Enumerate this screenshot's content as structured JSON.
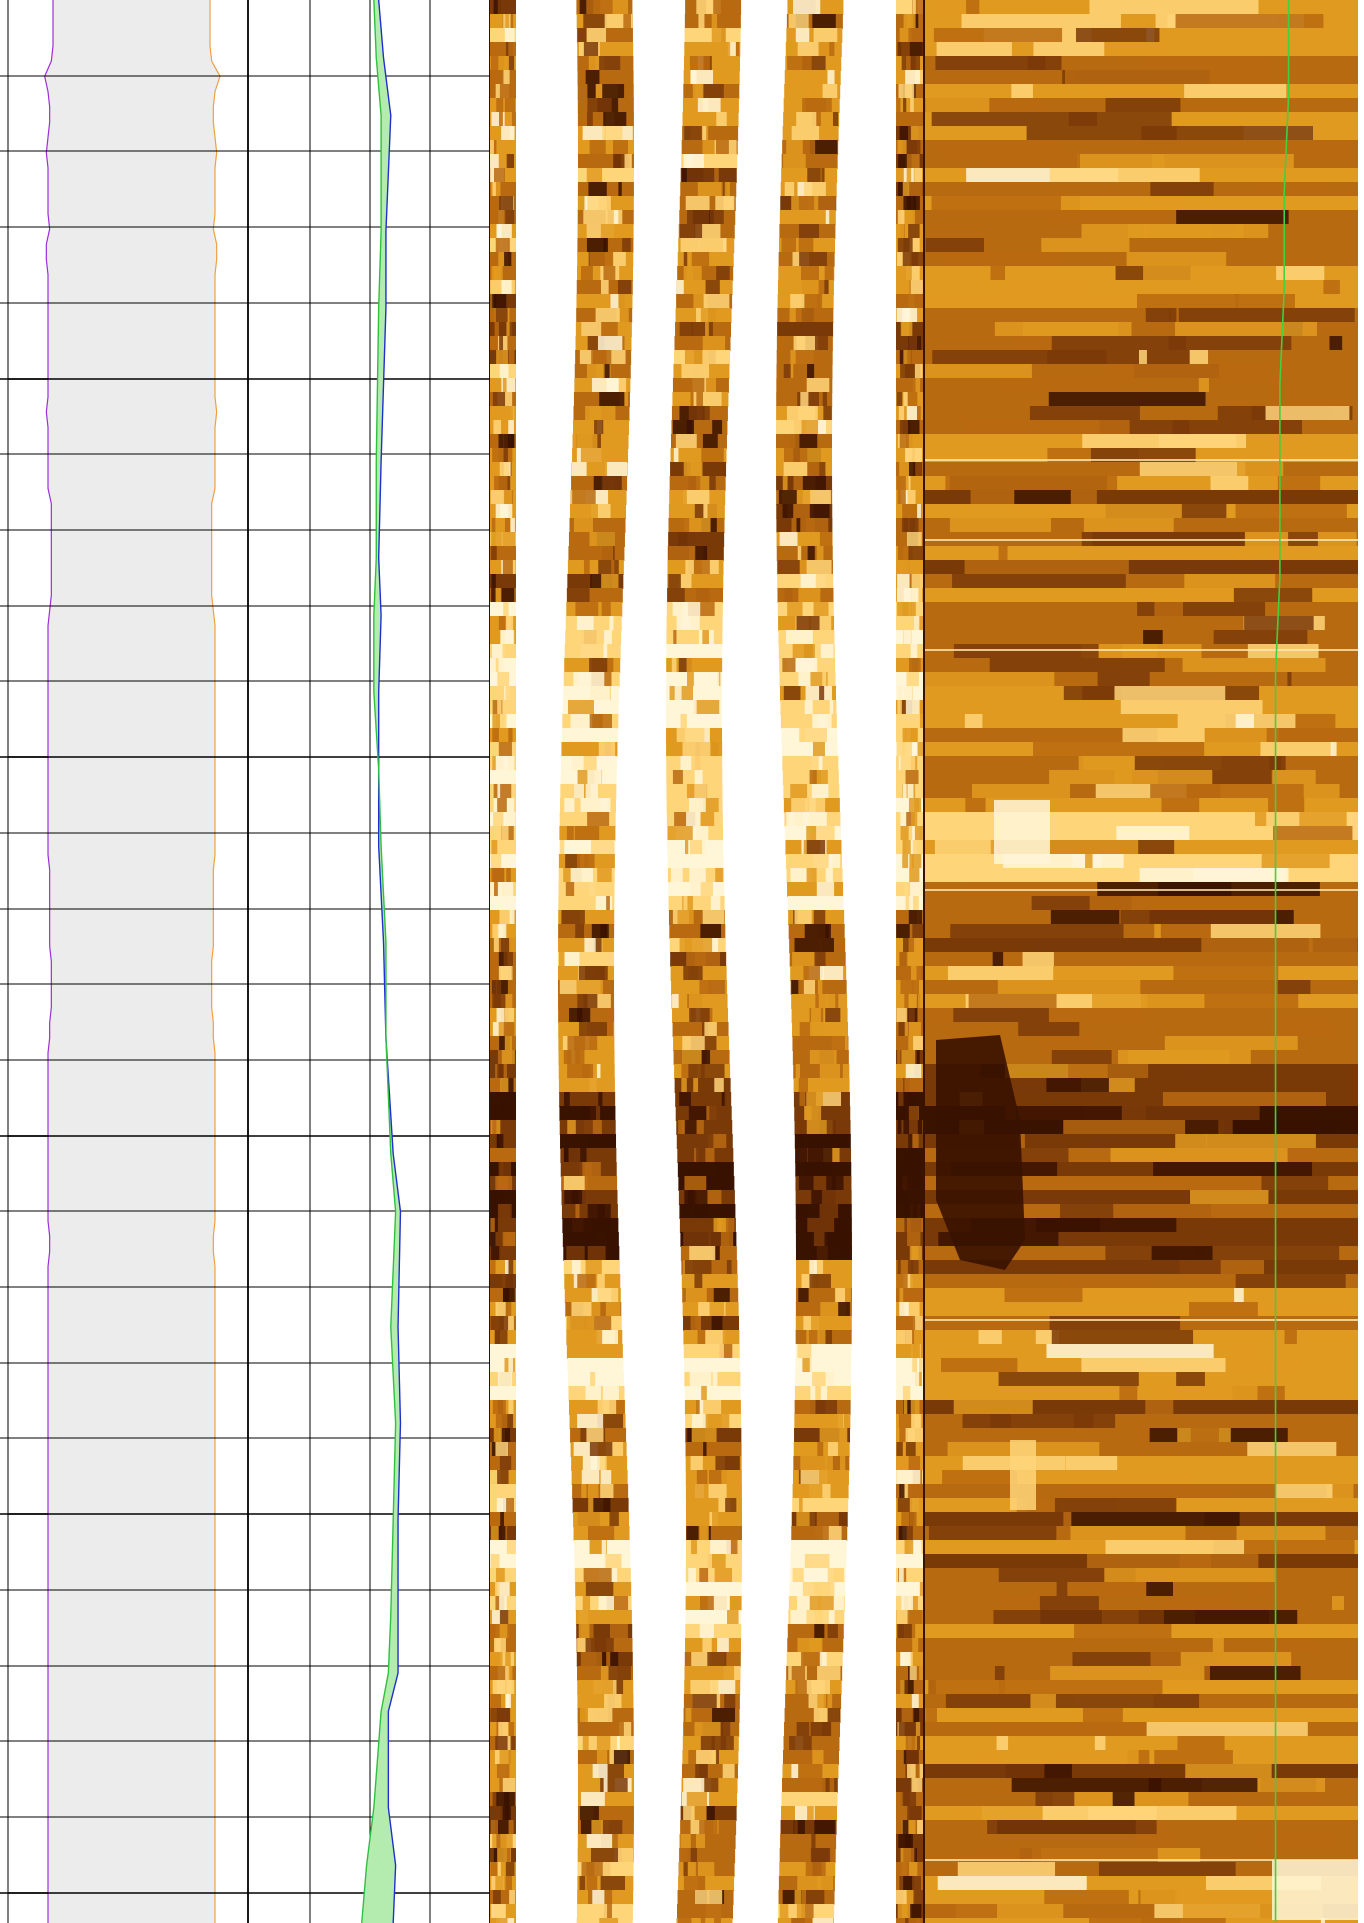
{
  "chart_data": {
    "type": "line",
    "title": "",
    "depth_axis": {
      "label": "",
      "ticks": [],
      "major_every": 5,
      "minor_count": 25,
      "inverted": true
    },
    "tracks": [
      {
        "name": "",
        "kind": "caliper",
        "fill": "#ececec",
        "series": [
          {
            "name": "",
            "color": "#9b30d9",
            "x": [
              0.03,
              0.03,
              0.03,
              0.03,
              0.02,
              -0.02,
              0.0,
              0.01,
              0.01,
              0.0,
              -0.01,
              0.0,
              0.0,
              0.0,
              0.0,
              0.01,
              -0.01,
              -0.01,
              0.0,
              0.0,
              0.0,
              0.0,
              0.0,
              0.0,
              0.0,
              0.0,
              0.0,
              -0.01,
              0.0,
              0.0,
              0.0,
              0.0,
              0.0,
              0.02,
              0.02,
              0.02,
              0.02,
              0.02,
              0.02,
              0.02,
              0.01,
              0.0,
              0.0,
              0.0,
              0.0,
              0.0,
              0.0,
              0.0,
              0.0,
              0.0,
              0.0,
              0.0,
              0.0,
              0.0,
              0.0,
              0.0,
              0.0,
              0.01,
              0.01,
              0.01,
              0.01,
              0.01,
              0.01,
              0.02,
              0.02,
              0.02,
              0.02,
              0.01,
              0.01,
              0.0,
              0.0,
              0.0,
              0.0,
              0.0,
              0.0,
              0.0,
              0.0,
              0.0,
              0.0,
              0.0,
              0.0,
              0.01,
              0.01,
              0.0,
              0.0,
              0.0,
              0.0,
              0.0,
              0.0,
              0.0,
              0.0,
              0.0,
              0.0,
              0.0,
              0.0,
              0.0,
              0.0,
              0.0,
              0.0,
              0.0,
              0.0,
              0.0,
              0.0,
              0.0,
              0.0,
              0.0,
              0.0,
              0.0,
              0.0,
              0.0,
              0.0,
              0.0,
              0.0,
              0.0,
              0.0,
              0.0,
              0.0,
              0.0,
              0.0,
              0.0,
              0.0,
              0.0,
              0.0,
              0.0,
              0.0,
              0.0,
              0.0
            ]
          },
          {
            "name": "",
            "color": "#f0a040",
            "x": [
              0.97,
              0.97,
              0.97,
              0.97,
              0.98,
              1.03,
              1.0,
              0.99,
              0.99,
              1.0,
              1.01,
              1.0,
              1.0,
              1.0,
              1.0,
              0.99,
              1.01,
              1.01,
              1.0,
              1.0,
              1.0,
              1.0,
              1.0,
              1.0,
              1.0,
              1.0,
              1.0,
              1.01,
              1.0,
              1.0,
              1.0,
              1.0,
              1.0,
              0.98,
              0.98,
              0.98,
              0.98,
              0.98,
              0.98,
              0.98,
              0.99,
              1.0,
              1.0,
              1.0,
              1.0,
              1.0,
              1.0,
              1.0,
              1.0,
              1.0,
              1.0,
              1.0,
              1.0,
              1.0,
              1.0,
              1.0,
              1.0,
              0.99,
              0.99,
              0.99,
              0.99,
              0.99,
              0.99,
              0.98,
              0.98,
              0.98,
              0.98,
              0.99,
              0.99,
              1.0,
              1.0,
              1.0,
              1.0,
              1.0,
              1.0,
              1.0,
              1.0,
              1.0,
              1.0,
              1.0,
              1.0,
              0.99,
              0.99,
              1.0,
              1.0,
              1.0,
              1.0,
              1.0,
              1.0,
              1.0,
              1.0,
              1.0,
              1.0,
              1.0,
              1.0,
              1.0,
              1.0,
              1.0,
              1.0,
              1.0,
              1.0,
              1.0,
              1.0,
              1.0,
              1.0,
              1.0,
              1.0,
              1.0,
              1.0,
              1.0,
              1.0,
              1.0,
              1.0,
              1.0,
              1.0,
              1.0,
              1.0,
              1.0,
              1.0,
              1.0,
              1.0,
              1.0,
              1.0,
              1.0,
              1.0,
              1.0,
              1.0
            ]
          }
        ]
      },
      {
        "name": "",
        "kind": "curves",
        "grid": true,
        "series": [
          {
            "name": "",
            "color": "#1f2fd0",
            "points": [
              [
                0.54,
                0
              ],
              [
                0.56,
                3
              ],
              [
                0.59,
                6
              ],
              [
                0.57,
                12
              ],
              [
                0.57,
                16
              ],
              [
                0.55,
                24
              ],
              [
                0.54,
                29
              ],
              [
                0.55,
                32
              ],
              [
                0.54,
                36
              ],
              [
                0.54,
                40
              ],
              [
                0.54,
                44
              ],
              [
                0.56,
                49
              ],
              [
                0.57,
                54
              ],
              [
                0.6,
                60
              ],
              [
                0.63,
                63
              ],
              [
                0.62,
                69
              ],
              [
                0.63,
                74
              ],
              [
                0.62,
                79
              ],
              [
                0.62,
                84
              ],
              [
                0.62,
                87
              ],
              [
                0.58,
                89
              ],
              [
                0.58,
                94
              ],
              [
                0.61,
                97
              ],
              [
                0.6,
                100
              ]
            ]
          },
          {
            "name": "",
            "color": "#30c040",
            "points": [
              [
                0.52,
                0
              ],
              [
                0.53,
                3
              ],
              [
                0.55,
                6
              ],
              [
                0.55,
                12
              ],
              [
                0.54,
                16
              ],
              [
                0.53,
                24
              ],
              [
                0.53,
                29
              ],
              [
                0.52,
                32
              ],
              [
                0.52,
                36
              ],
              [
                0.54,
                40
              ],
              [
                0.55,
                44
              ],
              [
                0.57,
                49
              ],
              [
                0.57,
                54
              ],
              [
                0.59,
                60
              ],
              [
                0.61,
                63
              ],
              [
                0.59,
                69
              ],
              [
                0.61,
                74
              ],
              [
                0.6,
                79
              ],
              [
                0.59,
                84
              ],
              [
                0.58,
                87
              ],
              [
                0.55,
                89
              ],
              [
                0.52,
                94
              ],
              [
                0.49,
                97
              ],
              [
                0.47,
                100
              ]
            ]
          }
        ]
      },
      {
        "name": "",
        "kind": "image-strips",
        "strips": 4,
        "palette": [
          "#3a1200",
          "#7a3a08",
          "#b86a10",
          "#e09a20",
          "#ffd57a",
          "#fff6d8"
        ]
      },
      {
        "name": "",
        "kind": "image",
        "palette": [
          "#3a1200",
          "#7a3a08",
          "#b86a10",
          "#e09a20",
          "#ffd57a",
          "#fff6d8"
        ],
        "overlay": {
          "name": "",
          "color": "#40d040",
          "x": [
            0.84,
            0.84,
            0.83,
            0.83,
            0.82,
            0.82,
            0.82,
            0.81,
            0.81,
            0.81,
            0.81,
            0.81,
            0.81,
            0.81,
            0.81,
            0.81,
            0.81,
            0.81,
            0.81,
            0.81,
            0.81
          ]
        }
      }
    ]
  }
}
